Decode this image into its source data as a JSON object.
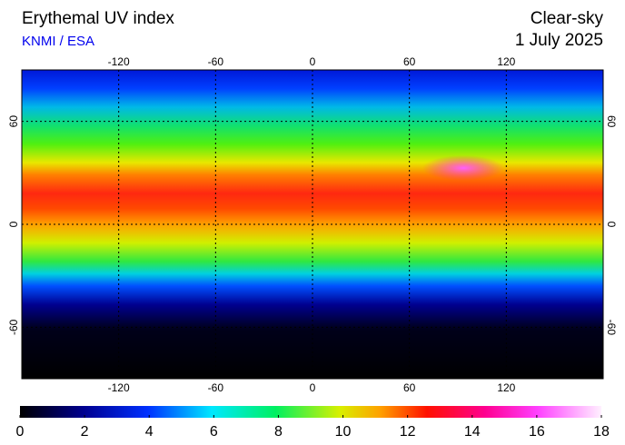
{
  "header": {
    "title": "Erythemal UV index",
    "source": "KNMI / ESA",
    "condition": "Clear-sky",
    "date": "1 July 2025"
  },
  "map": {
    "lonlim": [
      -180,
      180
    ],
    "latlim": [
      -90,
      90
    ],
    "lon_ticks": [
      -120,
      -60,
      0,
      60,
      120
    ],
    "lat_ticks": [
      60,
      0,
      -60
    ]
  },
  "colorbar": {
    "lim": [
      0,
      18
    ],
    "ticks": [
      0,
      2,
      4,
      6,
      8,
      10,
      12,
      14,
      16,
      18
    ]
  }
}
